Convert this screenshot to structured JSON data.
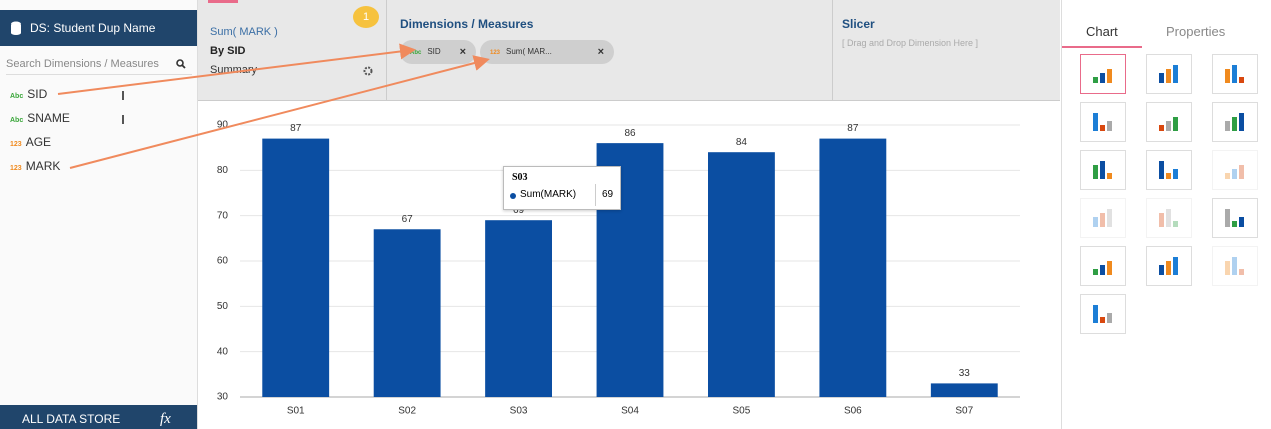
{
  "sidebar": {
    "title": "DS: Student Dup Name",
    "search_placeholder": "Search Dimensions / Measures",
    "fields": [
      {
        "type": "Abc",
        "name": "SID"
      },
      {
        "type": "Abc",
        "name": "SNAME"
      },
      {
        "type": "123",
        "name": "AGE"
      },
      {
        "type": "123",
        "name": "MARK"
      }
    ],
    "footer": "ALL DATA STORE",
    "footer_icon": "fx"
  },
  "toolbar": {
    "summary": {
      "measure": "Sum( MARK )",
      "by": "By SID",
      "summary": "Summary"
    },
    "dimensions": {
      "step": "1",
      "title": "Dimensions / Measures",
      "chips": [
        {
          "type": "Abc",
          "label": "SID"
        },
        {
          "type": "123",
          "label": "Sum( MAR..."
        }
      ]
    },
    "slicer": {
      "title": "Slicer",
      "hint": "[ Drag and Drop Dimension Here ]"
    }
  },
  "panel": {
    "tabs": [
      "Chart",
      "Properties"
    ]
  },
  "chart_data": {
    "type": "bar",
    "categories": [
      "S01",
      "S02",
      "S03",
      "S04",
      "S05",
      "S06",
      "S07"
    ],
    "values": [
      87,
      67,
      69,
      86,
      84,
      87,
      33
    ],
    "color": "#0b4ea2",
    "ylim": [
      30,
      90
    ],
    "yticks": [
      30,
      40,
      50,
      60,
      70,
      80,
      90
    ],
    "grid": true,
    "tooltip": {
      "title": "S03",
      "series_name": "Sum(MARK)",
      "value": 69
    }
  }
}
